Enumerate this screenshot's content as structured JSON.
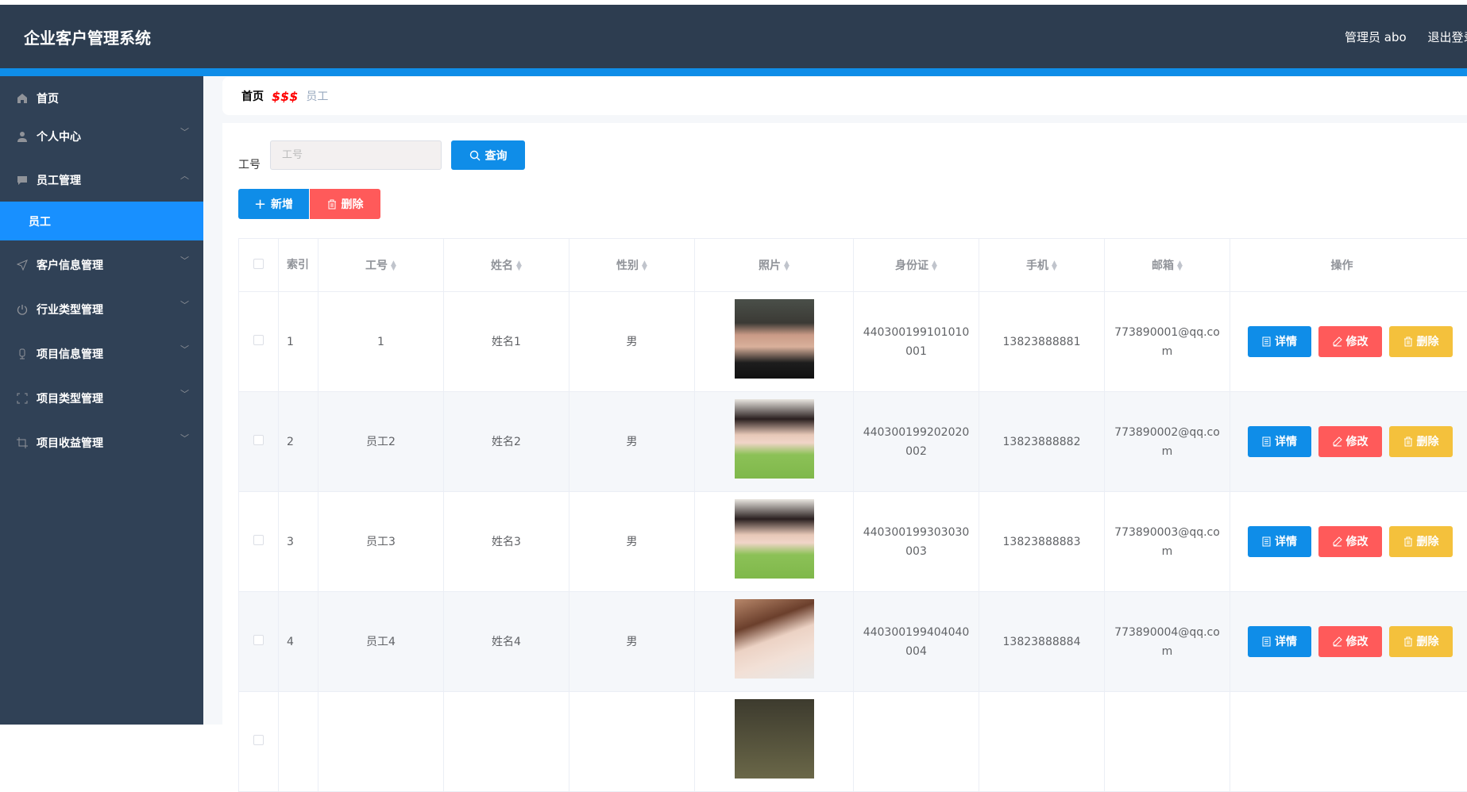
{
  "header": {
    "title": "企业客户管理系统",
    "user": "管理员 abo",
    "logout": "退出登录"
  },
  "sidebar": {
    "items": [
      {
        "label": "首页",
        "icon": "home-icon",
        "chevron": ""
      },
      {
        "label": "个人中心",
        "icon": "user-icon",
        "chevron": "down"
      },
      {
        "label": "员工管理",
        "icon": "message-icon",
        "chevron": "up"
      },
      {
        "label": "员工",
        "icon": "",
        "chevron": "",
        "active": true
      },
      {
        "label": "客户信息管理",
        "icon": "send-icon",
        "chevron": "down"
      },
      {
        "label": "行业类型管理",
        "icon": "power-icon",
        "chevron": "down"
      },
      {
        "label": "项目信息管理",
        "icon": "microphone-icon",
        "chevron": "down"
      },
      {
        "label": "项目类型管理",
        "icon": "full-screen-icon",
        "chevron": "down"
      },
      {
        "label": "项目收益管理",
        "icon": "crop-icon",
        "chevron": "down"
      }
    ]
  },
  "breadcrumb": {
    "home": "首页",
    "separator": "$$$",
    "current": "员工"
  },
  "search": {
    "label": "工号",
    "placeholder": "工号",
    "query": "查询"
  },
  "toolbar": {
    "add": "新增",
    "delete": "删除"
  },
  "table": {
    "columns": [
      "索引",
      "工号",
      "姓名",
      "性别",
      "照片",
      "身份证",
      "手机",
      "邮箱",
      "操作"
    ],
    "actions": {
      "detail": "详情",
      "edit": "修改",
      "delete": "删除"
    },
    "rows": [
      {
        "index": "1",
        "id": "1",
        "name": "姓名1",
        "gender": "男",
        "idcard": "440300199101010001",
        "phone": "13823888881",
        "email": "773890001@qq.com"
      },
      {
        "index": "2",
        "id": "员工2",
        "name": "姓名2",
        "gender": "男",
        "idcard": "440300199202020002",
        "phone": "13823888882",
        "email": "773890002@qq.com"
      },
      {
        "index": "3",
        "id": "员工3",
        "name": "姓名3",
        "gender": "男",
        "idcard": "440300199303030003",
        "phone": "13823888883",
        "email": "773890003@qq.com"
      },
      {
        "index": "4",
        "id": "员工4",
        "name": "姓名4",
        "gender": "男",
        "idcard": "440300199404040004",
        "phone": "13823888884",
        "email": "773890004@qq.com"
      }
    ]
  },
  "colors": {
    "header": "#2d3d50",
    "sidebar": "#304156",
    "accent": "#1890ff",
    "primary": "#0f8de8",
    "danger": "#ff5a5a",
    "warning": "#f4c13c"
  }
}
